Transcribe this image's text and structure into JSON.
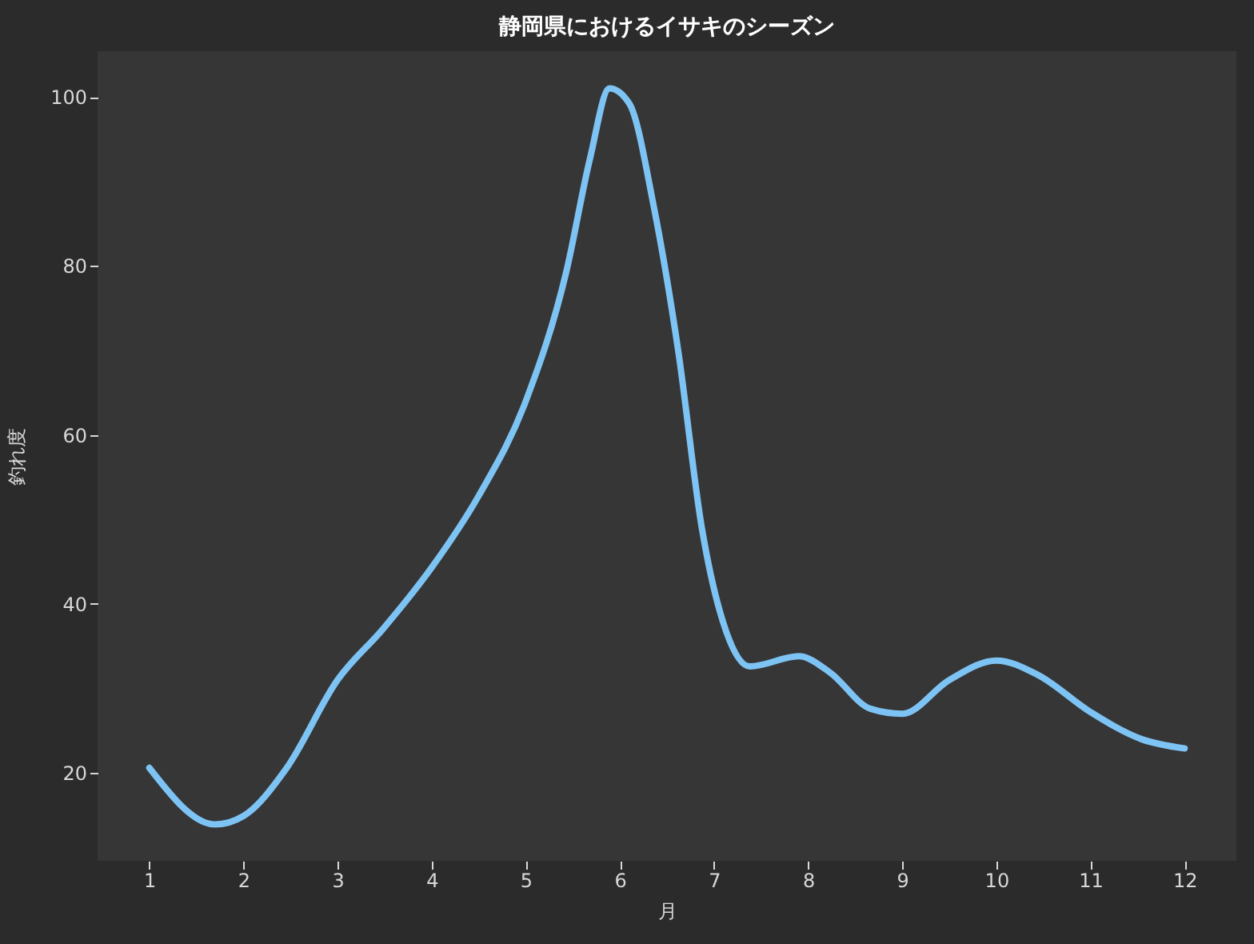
{
  "chart_data": {
    "type": "line",
    "title": "静岡県におけるイサキのシーズン",
    "xlabel": "月",
    "ylabel": "釣れ度",
    "x": [
      1,
      1.7,
      2,
      2.46,
      3,
      3.48,
      4,
      4.5,
      5,
      5.43,
      5.68,
      5.89,
      6.1,
      6.36,
      6.62,
      6.87,
      7.13,
      7.38,
      7.9,
      8.23,
      8.66,
      9,
      9.5,
      10,
      10.44,
      11,
      11.54,
      12
    ],
    "series": [
      {
        "color": "#7dc4f5",
        "values": [
          20.6,
          13.9,
          14.9,
          20.6,
          31,
          37,
          44.3,
          52.8,
          64,
          79.3,
          92.6,
          101,
          99.2,
          87,
          69.9,
          49,
          36.7,
          32.6,
          33.8,
          31.9,
          27.6,
          27,
          31,
          33.3,
          31.6,
          27.2,
          24,
          22.9
        ]
      }
    ],
    "xlim": [
      0.45,
      12.55
    ],
    "xticks": [
      1,
      2,
      3,
      4,
      5,
      6,
      7,
      8,
      9,
      10,
      11,
      12
    ],
    "ylim": [
      9.6,
      105.4
    ],
    "yticks": [
      20,
      40,
      60,
      80,
      100
    ],
    "grid": false,
    "marker": "none",
    "line_style": "solid"
  }
}
